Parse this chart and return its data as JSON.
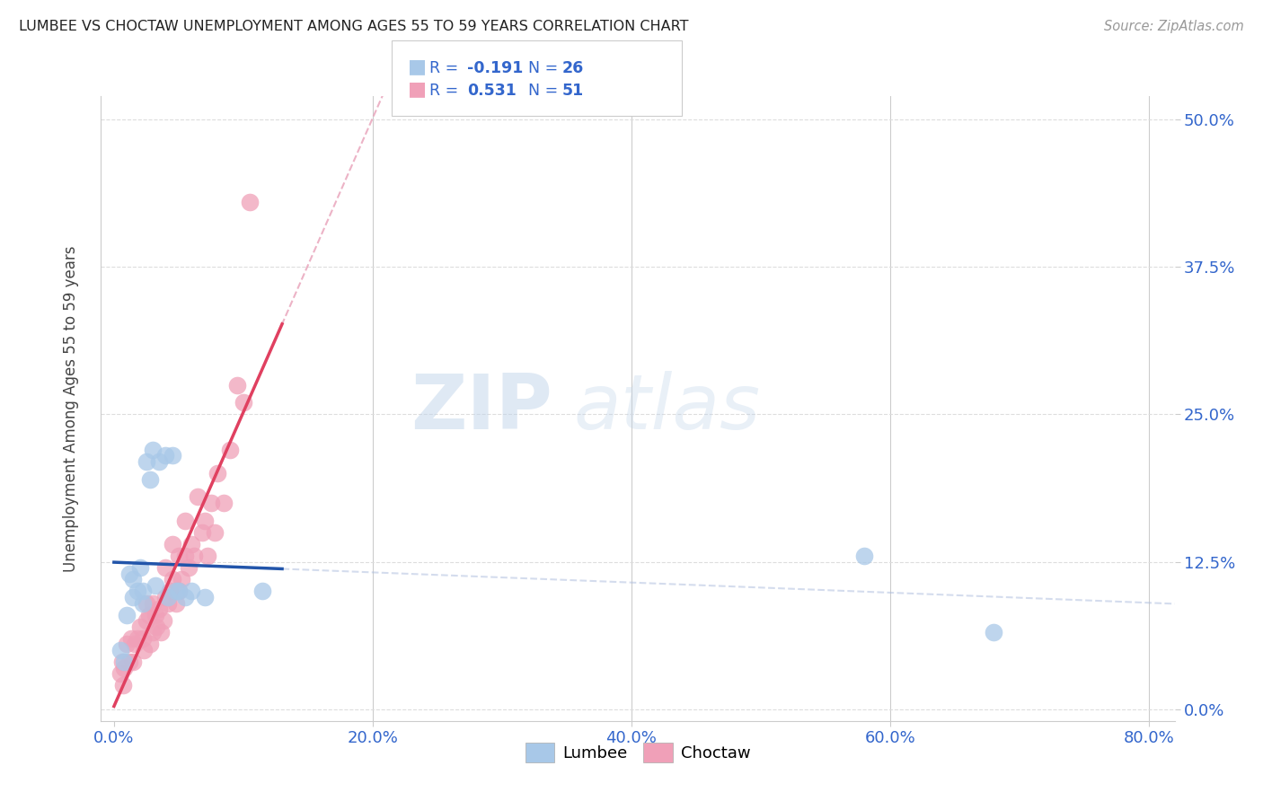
{
  "title": "LUMBEE VS CHOCTAW UNEMPLOYMENT AMONG AGES 55 TO 59 YEARS CORRELATION CHART",
  "source": "Source: ZipAtlas.com",
  "xlabel_ticks": [
    "0.0%",
    "20.0%",
    "40.0%",
    "60.0%",
    "80.0%"
  ],
  "xlabel_tick_vals": [
    0.0,
    0.2,
    0.4,
    0.6,
    0.8
  ],
  "ylabel_ticks": [
    "0.0%",
    "12.5%",
    "25.0%",
    "37.5%",
    "50.0%"
  ],
  "ylabel_tick_vals": [
    0.0,
    0.125,
    0.25,
    0.375,
    0.5
  ],
  "ylabel": "Unemployment Among Ages 55 to 59 years",
  "xlim": [
    -0.01,
    0.82
  ],
  "ylim": [
    -0.01,
    0.52
  ],
  "lumbee_color": "#a8c8e8",
  "choctaw_color": "#f0a0b8",
  "lumbee_line_color": "#2255aa",
  "choctaw_line_color": "#e04060",
  "choctaw_dashed_color": "#e8a0b8",
  "text_color_blue": "#3366cc",
  "legend_r_lumbee": "-0.191",
  "legend_n_lumbee": "26",
  "legend_r_choctaw": "0.531",
  "legend_n_choctaw": "51",
  "lumbee_x": [
    0.005,
    0.008,
    0.01,
    0.012,
    0.015,
    0.015,
    0.018,
    0.02,
    0.022,
    0.022,
    0.025,
    0.028,
    0.03,
    0.032,
    0.035,
    0.04,
    0.042,
    0.045,
    0.048,
    0.05,
    0.055,
    0.06,
    0.07,
    0.115,
    0.58,
    0.68
  ],
  "lumbee_y": [
    0.05,
    0.04,
    0.08,
    0.115,
    0.095,
    0.11,
    0.1,
    0.12,
    0.1,
    0.09,
    0.21,
    0.195,
    0.22,
    0.105,
    0.21,
    0.215,
    0.095,
    0.215,
    0.1,
    0.1,
    0.095,
    0.1,
    0.095,
    0.1,
    0.13,
    0.065
  ],
  "choctaw_x": [
    0.005,
    0.006,
    0.007,
    0.008,
    0.01,
    0.012,
    0.013,
    0.015,
    0.016,
    0.018,
    0.02,
    0.022,
    0.023,
    0.025,
    0.025,
    0.027,
    0.028,
    0.03,
    0.03,
    0.032,
    0.033,
    0.035,
    0.036,
    0.038,
    0.04,
    0.04,
    0.042,
    0.043,
    0.045,
    0.045,
    0.048,
    0.05,
    0.05,
    0.052,
    0.055,
    0.055,
    0.058,
    0.06,
    0.062,
    0.065,
    0.068,
    0.07,
    0.072,
    0.075,
    0.078,
    0.08,
    0.085,
    0.09,
    0.095,
    0.1,
    0.105
  ],
  "choctaw_y": [
    0.03,
    0.04,
    0.02,
    0.035,
    0.055,
    0.04,
    0.06,
    0.04,
    0.055,
    0.06,
    0.07,
    0.06,
    0.05,
    0.075,
    0.09,
    0.08,
    0.055,
    0.09,
    0.065,
    0.08,
    0.07,
    0.085,
    0.065,
    0.075,
    0.095,
    0.12,
    0.09,
    0.1,
    0.11,
    0.14,
    0.09,
    0.1,
    0.13,
    0.11,
    0.13,
    0.16,
    0.12,
    0.14,
    0.13,
    0.18,
    0.15,
    0.16,
    0.13,
    0.175,
    0.15,
    0.2,
    0.175,
    0.22,
    0.275,
    0.26,
    0.43
  ],
  "watermark_zip": "ZIP",
  "watermark_atlas": "atlas",
  "background_color": "#ffffff",
  "grid_color": "#dddddd"
}
